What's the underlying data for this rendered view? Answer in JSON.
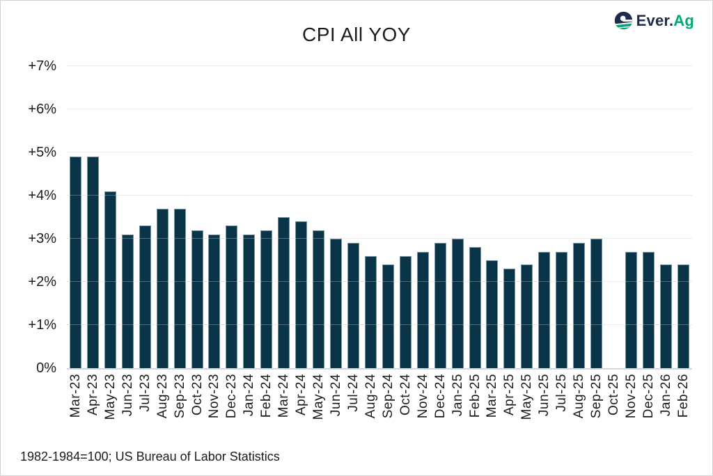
{
  "page": {
    "title": "CPI All YOY",
    "footnote": "1982-1984=100; US Bureau of Labor Statistics"
  },
  "logo": {
    "brand_primary": "Ever.",
    "brand_accent": "Ag",
    "icon": "everag-e-swirl-icon"
  },
  "colors": {
    "bar": "#0a3448",
    "gridline": "#e3e3e3",
    "baseline": "#d6d6d6",
    "text": "#1b1b1b",
    "logo_navy": "#1f2b4d",
    "logo_green": "#00a878",
    "frame_border": "#d2d2d2"
  },
  "chart_data": {
    "type": "bar",
    "title": "CPI All YOY",
    "xlabel": "",
    "ylabel": "",
    "ylim": [
      0,
      7
    ],
    "y_ticks": [
      0,
      1,
      2,
      3,
      4,
      5,
      6,
      7
    ],
    "y_tick_labels": [
      "0%",
      "+1%",
      "+2%",
      "+3%",
      "+4%",
      "+5%",
      "+6%",
      "+7%"
    ],
    "grid": true,
    "legend_position": "none",
    "bar_color": "#0a3448",
    "categories": [
      "Mar-23",
      "Apr-23",
      "May-23",
      "Jun-23",
      "Jul-23",
      "Aug-23",
      "Sep-23",
      "Oct-23",
      "Nov-23",
      "Dec-23",
      "Jan-24",
      "Feb-24",
      "Mar-24",
      "Apr-24",
      "May-24",
      "Jun-24",
      "Jul-24",
      "Aug-24",
      "Sep-24",
      "Oct-24",
      "Nov-24",
      "Dec-24",
      "Jan-25",
      "Feb-25",
      "Mar-25",
      "Apr-25",
      "May-25",
      "Jun-25",
      "Jul-25",
      "Aug-25",
      "Sep-25",
      "Oct-25",
      "Nov-25",
      "Dec-25",
      "Jan-26",
      "Feb-26"
    ],
    "values": [
      4.9,
      4.9,
      4.1,
      3.1,
      3.3,
      3.7,
      3.7,
      3.2,
      3.1,
      3.3,
      3.1,
      3.2,
      3.5,
      3.4,
      3.2,
      3.0,
      2.9,
      2.6,
      2.4,
      2.6,
      2.7,
      2.9,
      3.0,
      2.8,
      2.5,
      2.3,
      2.4,
      2.7,
      2.7,
      2.9,
      3.0,
      null,
      2.7,
      2.7,
      2.4,
      2.4
    ],
    "missing_data_categories": [
      "Oct-25"
    ],
    "source_note": "1982-1984=100; US Bureau of Labor Statistics"
  }
}
